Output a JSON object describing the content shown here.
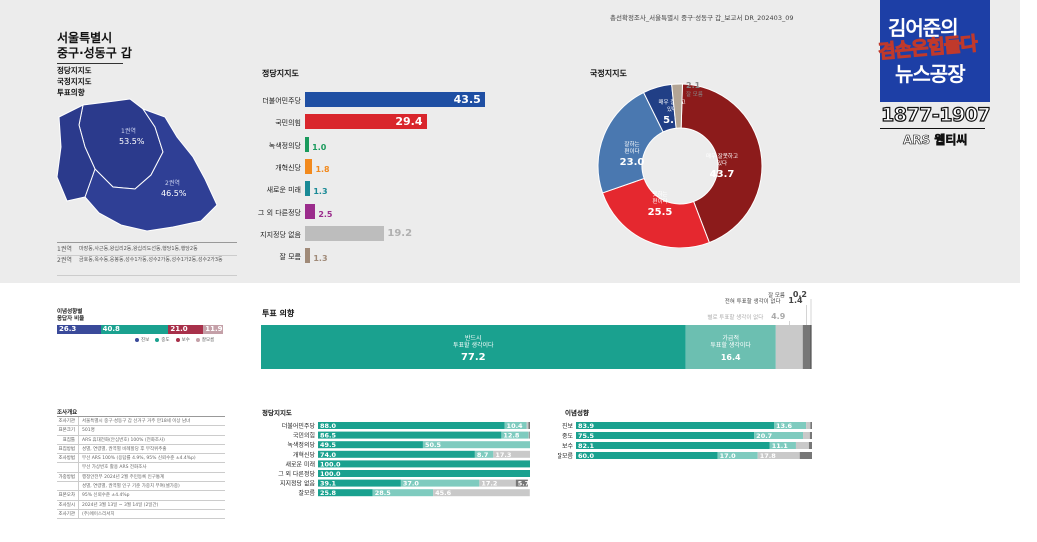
{
  "report_id": "총선확정조사_서울특별시 중구·성동구 갑_보고서   DR_202403_09",
  "region": {
    "line1": "서울특별시",
    "line2": "중구·성동구 갑"
  },
  "sections_list": [
    "정당지지도",
    "국정지지도",
    "투표의향"
  ],
  "map": {
    "areas": [
      {
        "label": "1권역",
        "value": "53.5%"
      },
      {
        "label": "2권역",
        "value": "46.5%"
      }
    ],
    "color": "#2b3a8c",
    "legend": [
      {
        "key": "1권역",
        "desc": "마장동,사근동,왕십리2동,왕십리도선동,행당1동,행당2동"
      },
      {
        "key": "2권역",
        "desc": "금호동,옥수동,응봉동,성수1가동,성수2가동,성수1가2동,성수2가3동"
      }
    ]
  },
  "logo": {
    "line1": "김어준의",
    "line2": "겸손은힘들다",
    "line3": "뉴스공장",
    "range": "1877-1907",
    "live": "ARS 웹티씨"
  },
  "chart_data": [
    {
      "type": "bar",
      "title": "정당지지도",
      "orientation": "horizontal",
      "categories": [
        "더불어민주당",
        "국민의힘",
        "녹색정의당",
        "개혁신당",
        "새로운 미래",
        "그 외 다른정당",
        "지지정당 없음",
        "잘 모름"
      ],
      "values": [
        43.5,
        29.4,
        1.0,
        1.8,
        1.3,
        2.5,
        19.2,
        1.3
      ],
      "value_labels": [
        "43.5",
        "29.4",
        "1.0",
        "1.8",
        "1.3",
        "2.5",
        "19.2",
        "1.3"
      ],
      "colors": [
        "#1f4fa3",
        "#d9262c",
        "#1a9a5c",
        "#f28a1e",
        "#1a8a96",
        "#9b2c8c",
        "#bdbdbd",
        "#a08a78"
      ]
    },
    {
      "type": "pie",
      "title": "국정지지도",
      "donut": true,
      "slices": [
        {
          "label": "매우 잘못하고 있다",
          "value": 43.7,
          "display": "43.7",
          "color": "#8c1b1b"
        },
        {
          "label": "못하는 편이다",
          "value": 25.5,
          "display": "25.5",
          "color": "#e5282f"
        },
        {
          "label": "잘하는 편이다",
          "value": 23.0,
          "display": "23.0",
          "color": "#4a78b0"
        },
        {
          "label": "매우 잘하고 있다",
          "value": 5.7,
          "display": "5.7",
          "color": "#213f86"
        },
        {
          "label": "잘 모름",
          "value": 2.1,
          "display": "2.1",
          "color": "#b3a595"
        }
      ]
    },
    {
      "type": "bar",
      "title": "투표 의향",
      "orientation": "stacked-horizontal",
      "segments": [
        {
          "label": "반드시 투표할 생각이다",
          "value": 77.2,
          "display": "77.2",
          "color": "#1aa18f"
        },
        {
          "label": "가급적 투표할 생각이다",
          "value": 16.4,
          "display": "16.4",
          "color": "#6cbfb1"
        },
        {
          "label": "별로 투표할 생각이 없다",
          "value": 4.9,
          "display": "4.9",
          "color": "#c9c9c9"
        },
        {
          "label": "전혀 투표할 생각이 없다",
          "value": 1.4,
          "display": "1.4",
          "color": "#777777"
        },
        {
          "label": "잘 모름",
          "value": 0.2,
          "display": "0.2",
          "color": "#444444"
        }
      ]
    },
    {
      "type": "bar",
      "title": "정당지지도",
      "orientation": "stacked-horizontal",
      "categories": [
        "더불어민주당",
        "국민의힘",
        "녹색정의당",
        "개혁신당",
        "새로운 미래",
        "그 외 다른정당",
        "지지정당 없음",
        "잘모름"
      ],
      "series": [
        {
          "name": "반드시",
          "color": "#1aa18f",
          "values": [
            88.0,
            86.5,
            49.5,
            74.0,
            100.0,
            100.0,
            39.1,
            25.8
          ]
        },
        {
          "name": "가급적",
          "color": "#7fcbbf",
          "values": [
            10.4,
            12.8,
            50.5,
            8.7,
            0,
            0,
            37.0,
            28.5
          ]
        },
        {
          "name": "별로",
          "color": "#c9c9c9",
          "values": [
            0.9,
            0.4,
            0,
            17.3,
            0,
            0,
            17.2,
            45.6
          ]
        },
        {
          "name": "전혀",
          "color": "#777777",
          "values": [
            0.7,
            0.3,
            0,
            0,
            0,
            0,
            5.7,
            0
          ]
        }
      ],
      "labels": [
        [
          "88.0",
          "10.4"
        ],
        [
          "86.5",
          "12.8"
        ],
        [
          "49.5",
          "50.5"
        ],
        [
          "74.0",
          "8.7",
          "17.3"
        ],
        [
          "100.0"
        ],
        [
          "100.0"
        ],
        [
          "39.1",
          "37.0",
          "17.2",
          "5.7"
        ],
        [
          "25.8",
          "28.5",
          "45.6"
        ]
      ]
    },
    {
      "type": "bar",
      "title": "이념성향",
      "orientation": "stacked-horizontal",
      "categories": [
        "진보",
        "중도",
        "보수",
        "잘모름"
      ],
      "series": [
        {
          "name": "반드시",
          "color": "#1aa18f",
          "values": [
            83.9,
            75.5,
            82.1,
            60.0
          ]
        },
        {
          "name": "가급적",
          "color": "#7fcbbf",
          "values": [
            13.6,
            20.7,
            11.1,
            17.0
          ]
        },
        {
          "name": "별로",
          "color": "#c9c9c9",
          "values": [
            1.8,
            2.9,
            5.5,
            17.8
          ]
        },
        {
          "name": "전혀",
          "color": "#777777",
          "values": [
            0.7,
            0.9,
            1.3,
            5.2
          ]
        }
      ],
      "labels": [
        [
          "83.9",
          "13.6"
        ],
        [
          "75.5",
          "20.7"
        ],
        [
          "82.1",
          "11.1"
        ],
        [
          "60.0",
          "17.0",
          "17.8"
        ]
      ]
    },
    {
      "type": "bar",
      "title": "이념성향 응답자 비율",
      "orientation": "stacked-horizontal",
      "segments": [
        {
          "label": "진보",
          "value": 26.3,
          "display": "26.3",
          "color": "#3a4a9a"
        },
        {
          "label": "중도",
          "value": 40.8,
          "display": "40.8",
          "color": "#1aa18f"
        },
        {
          "label": "보수",
          "value": 21.0,
          "display": "21.0",
          "color": "#a8304a"
        },
        {
          "label": "잘모름",
          "value": 11.9,
          "display": "11.9",
          "color": "#c4a0a8"
        }
      ]
    }
  ],
  "ideology_title": {
    "line1": "이념성향별",
    "line2": "응답자 비율"
  },
  "survey_info": {
    "title": "조사개요",
    "rows": [
      {
        "k": "조사기관",
        "v": "서울특별시 중구·성동구 갑 선거구 거주 만18세 이상 남녀"
      },
      {
        "k": "표본크기",
        "v": "501명"
      },
      {
        "k": "표집틀",
        "v": "ARS 휴대전화(안심번호) 100% (전화조사)"
      },
      {
        "k": "표집방법",
        "v": "성별, 연령별, 권역별 비례할당 후 무작위추출"
      },
      {
        "k": "조사방법",
        "v": "무선 ARS 100% (응답률 4.9%, 95% 신뢰수준 ±4.4%p)"
      },
      {
        "k": "",
        "v": "무선 가상번호 활용 ARS 전화조사"
      },
      {
        "k": "가중방법",
        "v": "행정안전부 2024년 2월 주민등록 인구통계"
      },
      {
        "k": "",
        "v": "성별, 연령별, 권역별 인구 기준 가중치 부여(셀가중)"
      },
      {
        "k": "표본오차",
        "v": "95% 신뢰수준 ±4.4%p"
      },
      {
        "k": "조사일시",
        "v": "2024년 3월 13일 ~ 3월 14일 (2일간)"
      },
      {
        "k": "조사기관",
        "v": "(주)에이스리서치"
      }
    ]
  }
}
